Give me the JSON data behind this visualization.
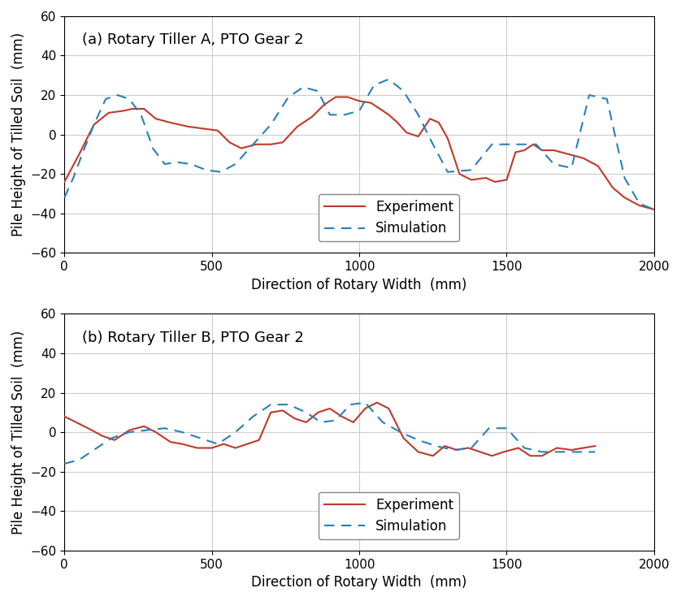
{
  "subplot_a": {
    "title": "(a) Rotary Tiller A, PTO Gear 2",
    "exp_x": [
      0,
      50,
      100,
      150,
      200,
      230,
      270,
      310,
      360,
      420,
      470,
      520,
      560,
      600,
      650,
      700,
      740,
      790,
      840,
      880,
      920,
      960,
      1000,
      1040,
      1070,
      1100,
      1130,
      1160,
      1200,
      1240,
      1270,
      1300,
      1340,
      1380,
      1430,
      1460,
      1500,
      1530,
      1560,
      1590,
      1620,
      1660,
      1710,
      1760,
      1810,
      1860,
      1900,
      1950,
      2000
    ],
    "exp_y": [
      -24,
      -10,
      5,
      11,
      12,
      13,
      13,
      8,
      6,
      4,
      3,
      2,
      -4,
      -7,
      -5,
      -5,
      -4,
      4,
      9,
      15,
      19,
      19,
      17,
      16,
      13,
      10,
      6,
      1,
      -1,
      8,
      6,
      -2,
      -20,
      -23,
      -22,
      -24,
      -23,
      -9,
      -8,
      -5,
      -8,
      -8,
      -10,
      -12,
      -16,
      -27,
      -32,
      -36,
      -38
    ],
    "sim_x": [
      0,
      30,
      60,
      100,
      140,
      180,
      220,
      260,
      300,
      340,
      380,
      430,
      480,
      530,
      580,
      640,
      700,
      760,
      810,
      860,
      900,
      950,
      1000,
      1050,
      1100,
      1150,
      1200,
      1250,
      1300,
      1380,
      1450,
      1520,
      1600,
      1660,
      1720,
      1780,
      1840,
      1900,
      1950,
      2000
    ],
    "sim_y": [
      -32,
      -22,
      -10,
      5,
      18,
      20,
      18,
      10,
      -7,
      -15,
      -14,
      -15,
      -18,
      -19,
      -15,
      -5,
      5,
      19,
      24,
      22,
      10,
      10,
      12,
      25,
      28,
      22,
      10,
      -5,
      -19,
      -18,
      -5,
      -5,
      -5,
      -15,
      -17,
      20,
      18,
      -22,
      -35,
      -38
    ],
    "xlim": [
      0,
      2000
    ],
    "ylim": [
      -60,
      60
    ],
    "xticks": [
      0,
      500,
      1000,
      1500,
      2000
    ],
    "yticks": [
      -60,
      -40,
      -20,
      0,
      20,
      40,
      60
    ]
  },
  "subplot_b": {
    "title": "(b) Rotary Tiller B, PTO Gear 2",
    "exp_x": [
      0,
      40,
      80,
      130,
      170,
      220,
      270,
      310,
      360,
      400,
      450,
      500,
      540,
      580,
      620,
      660,
      700,
      740,
      780,
      820,
      860,
      900,
      940,
      980,
      1020,
      1060,
      1100,
      1150,
      1200,
      1250,
      1290,
      1330,
      1370,
      1410,
      1450,
      1490,
      1540,
      1580,
      1620,
      1670,
      1720,
      1760,
      1800
    ],
    "exp_y": [
      8,
      5,
      2,
      -2,
      -4,
      1,
      3,
      0,
      -5,
      -6,
      -8,
      -8,
      -6,
      -8,
      -6,
      -4,
      10,
      11,
      7,
      5,
      10,
      12,
      8,
      5,
      12,
      15,
      12,
      -3,
      -10,
      -12,
      -7,
      -9,
      -8,
      -10,
      -12,
      -10,
      -8,
      -12,
      -12,
      -8,
      -9,
      -8,
      -7
    ],
    "sim_x": [
      0,
      50,
      100,
      160,
      220,
      280,
      340,
      400,
      460,
      520,
      580,
      640,
      700,
      760,
      820,
      870,
      920,
      970,
      1020,
      1080,
      1140,
      1200,
      1260,
      1320,
      1380,
      1440,
      1500,
      1560,
      1620,
      1680,
      1740,
      1800
    ],
    "sim_y": [
      -16,
      -14,
      -9,
      -3,
      0,
      1,
      2,
      0,
      -3,
      -6,
      0,
      8,
      14,
      14,
      10,
      5,
      6,
      14,
      15,
      5,
      0,
      -4,
      -7,
      -9,
      -8,
      2,
      2,
      -8,
      -10,
      -10,
      -10,
      -10
    ],
    "xlim": [
      0,
      2000
    ],
    "ylim": [
      -60,
      60
    ],
    "xticks": [
      0,
      500,
      1000,
      1500,
      2000
    ],
    "yticks": [
      -60,
      -40,
      -20,
      0,
      20,
      40,
      60
    ]
  },
  "exp_color": "#c0392b",
  "sim_color": "#2980b9",
  "exp_linewidth": 1.5,
  "sim_linewidth": 1.5,
  "xlabel": "Direction of Rotary Width  (mm)",
  "ylabel": "Pile Height of Tilled Soil  (mm)",
  "legend_exp": "Experiment",
  "legend_sim": "Simulation",
  "grid_color": "#cccccc",
  "background_color": "#ffffff",
  "title_fontsize": 13,
  "label_fontsize": 12,
  "tick_fontsize": 11
}
